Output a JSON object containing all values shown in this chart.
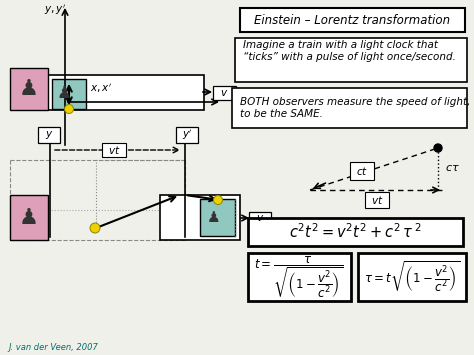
{
  "bg_color": "#f0f0ea",
  "pink_color": "#dda0b8",
  "teal_color": "#90c8c0",
  "title_text": "Einstein – Lorentz transformation",
  "text1": "Imagine a train with a light clock that\n“ticks” with a pulse of light once/second.",
  "text2": "BOTH observers measure the speed of light, c,\nto be the SAME.",
  "credit": "J. van der Veen, 2007",
  "eq1": "$c^2t^2 = v^2t^2 + c^2\\,\\tau^{\\,2}$",
  "eq2": "$t = \\dfrac{\\tau}{\\sqrt{\\left(1-\\dfrac{v^2}{c^2}\\right)}}$",
  "eq3": "$\\tau = t\\sqrt{\\left(1-\\dfrac{v^2}{c^2}\\right)}$"
}
